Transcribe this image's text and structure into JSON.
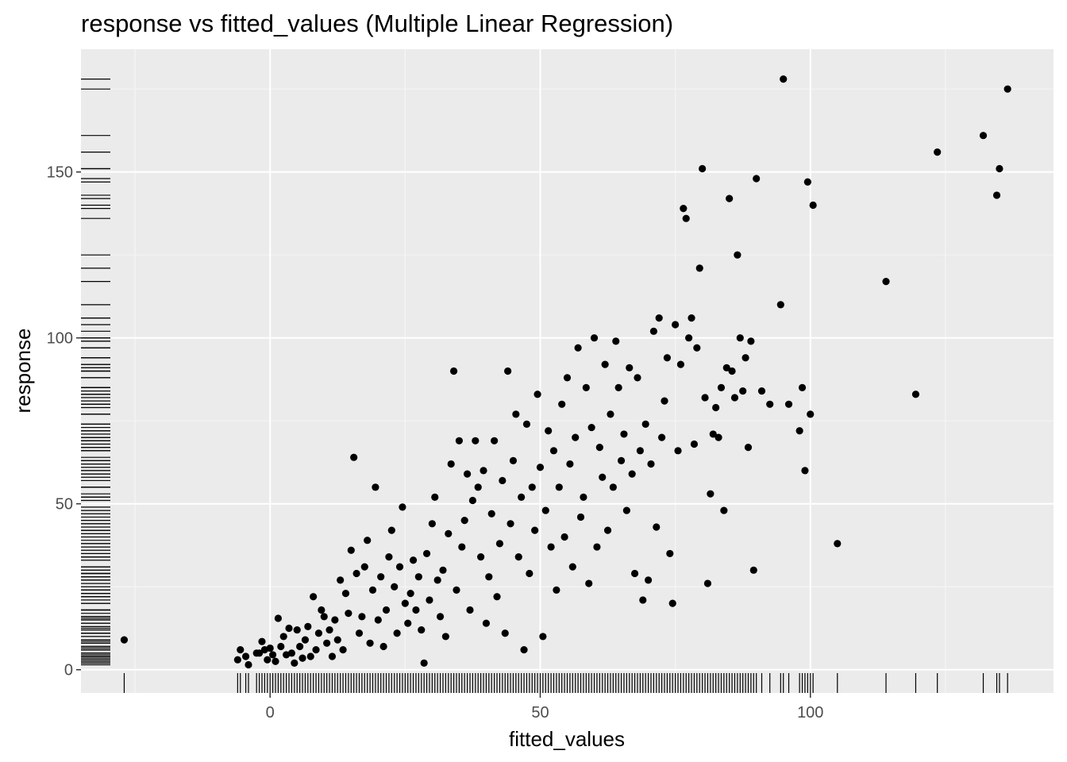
{
  "colors": {
    "panel_background": "#ebebeb",
    "major_grid": "#ffffff",
    "minor_grid": "#f5f5f5",
    "points": "#000000",
    "tick_text": "#4d4d4d"
  },
  "chart_data": {
    "type": "scatter",
    "title": "response vs fitted_values (Multiple Linear Regression)",
    "xlabel": "fitted_values",
    "ylabel": "response",
    "xlim": [
      -35,
      145
    ],
    "ylim": [
      -7,
      187
    ],
    "x_ticks": [
      0,
      50,
      100
    ],
    "y_ticks": [
      0,
      50,
      100,
      150
    ],
    "x_tick_labels": [
      "0",
      "50",
      "100"
    ],
    "y_tick_labels": [
      "0",
      "50",
      "100",
      "150"
    ],
    "grid": true,
    "rug": "left and bottom margins",
    "series": [
      {
        "points": [
          [
            -27,
            9
          ],
          [
            -6,
            3
          ],
          [
            -5.5,
            6
          ],
          [
            -4.5,
            4
          ],
          [
            -4,
            1.5
          ],
          [
            -2.5,
            5
          ],
          [
            -2,
            5
          ],
          [
            -1.5,
            8.5
          ],
          [
            -1,
            6
          ],
          [
            -0.5,
            3
          ],
          [
            0,
            6.5
          ],
          [
            0.5,
            4.5
          ],
          [
            1,
            2.5
          ],
          [
            1.5,
            15.5
          ],
          [
            2,
            7
          ],
          [
            2.5,
            10
          ],
          [
            3,
            4.5
          ],
          [
            3.5,
            12.5
          ],
          [
            4,
            5
          ],
          [
            4.5,
            2
          ],
          [
            5,
            12
          ],
          [
            5.5,
            7
          ],
          [
            6,
            3.5
          ],
          [
            6.5,
            9
          ],
          [
            7,
            13
          ],
          [
            7.5,
            4
          ],
          [
            8,
            22
          ],
          [
            8.5,
            6
          ],
          [
            9,
            11
          ],
          [
            9.5,
            18
          ],
          [
            10,
            16
          ],
          [
            10.5,
            8
          ],
          [
            11,
            12
          ],
          [
            11.5,
            4
          ],
          [
            12,
            15
          ],
          [
            12.5,
            9
          ],
          [
            13,
            27
          ],
          [
            13.5,
            6
          ],
          [
            14,
            23
          ],
          [
            14.5,
            17
          ],
          [
            15,
            36
          ],
          [
            15.5,
            64
          ],
          [
            16,
            29
          ],
          [
            16.5,
            11
          ],
          [
            17,
            16
          ],
          [
            17.5,
            31
          ],
          [
            18,
            39
          ],
          [
            18.5,
            8
          ],
          [
            19,
            24
          ],
          [
            19.5,
            55
          ],
          [
            20,
            15
          ],
          [
            20.5,
            28
          ],
          [
            21,
            7
          ],
          [
            21.5,
            18
          ],
          [
            22,
            34
          ],
          [
            22.5,
            42
          ],
          [
            23,
            25
          ],
          [
            23.5,
            11
          ],
          [
            24,
            31
          ],
          [
            24.5,
            49
          ],
          [
            25,
            20
          ],
          [
            25.5,
            14
          ],
          [
            26,
            23
          ],
          [
            26.5,
            33
          ],
          [
            27,
            18
          ],
          [
            27.5,
            28
          ],
          [
            28,
            12
          ],
          [
            28.5,
            2
          ],
          [
            29,
            35
          ],
          [
            29.5,
            21
          ],
          [
            30,
            44
          ],
          [
            30.5,
            52
          ],
          [
            31,
            27
          ],
          [
            31.5,
            16
          ],
          [
            32,
            30
          ],
          [
            32.5,
            10
          ],
          [
            33,
            41
          ],
          [
            33.5,
            62
          ],
          [
            34,
            90
          ],
          [
            34.5,
            24
          ],
          [
            35,
            69
          ],
          [
            35.5,
            37
          ],
          [
            36,
            45
          ],
          [
            36.5,
            59
          ],
          [
            37,
            18
          ],
          [
            37.5,
            51
          ],
          [
            38,
            69
          ],
          [
            38.5,
            55
          ],
          [
            39,
            34
          ],
          [
            39.5,
            60
          ],
          [
            40,
            14
          ],
          [
            40.5,
            28
          ],
          [
            41,
            47
          ],
          [
            41.5,
            69
          ],
          [
            42,
            22
          ],
          [
            42.5,
            38
          ],
          [
            43,
            57
          ],
          [
            43.5,
            11
          ],
          [
            44,
            90
          ],
          [
            44.5,
            44
          ],
          [
            45,
            63
          ],
          [
            45.5,
            77
          ],
          [
            46,
            34
          ],
          [
            46.5,
            52
          ],
          [
            47,
            6
          ],
          [
            47.5,
            74
          ],
          [
            48,
            29
          ],
          [
            48.5,
            55
          ],
          [
            49,
            42
          ],
          [
            49.5,
            83
          ],
          [
            50,
            61
          ],
          [
            50.5,
            10
          ],
          [
            51,
            48
          ],
          [
            51.5,
            72
          ],
          [
            52,
            37
          ],
          [
            52.5,
            66
          ],
          [
            53,
            24
          ],
          [
            53.5,
            55
          ],
          [
            54,
            80
          ],
          [
            54.5,
            40
          ],
          [
            55,
            88
          ],
          [
            55.5,
            62
          ],
          [
            56,
            31
          ],
          [
            56.5,
            70
          ],
          [
            57,
            97
          ],
          [
            57.5,
            46
          ],
          [
            58,
            52
          ],
          [
            58.5,
            85
          ],
          [
            59,
            26
          ],
          [
            59.5,
            73
          ],
          [
            60,
            100
          ],
          [
            60.5,
            37
          ],
          [
            61,
            67
          ],
          [
            61.5,
            58
          ],
          [
            62,
            92
          ],
          [
            62.5,
            42
          ],
          [
            63,
            77
          ],
          [
            63.5,
            55
          ],
          [
            64,
            99
          ],
          [
            64.5,
            85
          ],
          [
            65,
            63
          ],
          [
            65.5,
            71
          ],
          [
            66,
            48
          ],
          [
            66.5,
            91
          ],
          [
            67,
            59
          ],
          [
            67.5,
            29
          ],
          [
            68,
            88
          ],
          [
            68.5,
            66
          ],
          [
            69,
            21
          ],
          [
            69.5,
            74
          ],
          [
            70,
            27
          ],
          [
            70.5,
            62
          ],
          [
            71,
            102
          ],
          [
            71.5,
            43
          ],
          [
            72,
            106
          ],
          [
            72.5,
            70
          ],
          [
            73,
            81
          ],
          [
            73.5,
            94
          ],
          [
            74,
            35
          ],
          [
            74.5,
            20
          ],
          [
            75,
            104
          ],
          [
            75.5,
            66
          ],
          [
            76,
            92
          ],
          [
            76.5,
            139
          ],
          [
            77,
            136
          ],
          [
            77.5,
            100
          ],
          [
            78,
            106
          ],
          [
            78.5,
            68
          ],
          [
            79,
            97
          ],
          [
            79.5,
            121
          ],
          [
            80,
            151
          ],
          [
            80.5,
            82
          ],
          [
            81,
            26
          ],
          [
            81.5,
            53
          ],
          [
            82,
            71
          ],
          [
            82.5,
            79
          ],
          [
            83,
            70
          ],
          [
            83.5,
            85
          ],
          [
            84,
            48
          ],
          [
            84.5,
            91
          ],
          [
            85,
            142
          ],
          [
            85.5,
            90
          ],
          [
            86,
            82
          ],
          [
            86.5,
            125
          ],
          [
            87,
            100
          ],
          [
            87.5,
            84
          ],
          [
            88,
            94
          ],
          [
            88.5,
            67
          ],
          [
            89,
            99
          ],
          [
            89.5,
            30
          ],
          [
            90,
            148
          ],
          [
            91,
            84
          ],
          [
            92.5,
            80
          ],
          [
            94.5,
            110
          ],
          [
            95,
            178
          ],
          [
            96,
            80
          ],
          [
            98,
            72
          ],
          [
            98.5,
            85
          ],
          [
            99,
            60
          ],
          [
            99.5,
            147
          ],
          [
            100,
            77
          ],
          [
            100.5,
            140
          ],
          [
            105,
            38
          ],
          [
            114,
            117
          ],
          [
            119.5,
            83
          ],
          [
            123.5,
            156
          ],
          [
            132,
            161
          ],
          [
            134.5,
            143
          ],
          [
            135,
            151
          ],
          [
            136.5,
            175
          ]
        ]
      }
    ]
  }
}
